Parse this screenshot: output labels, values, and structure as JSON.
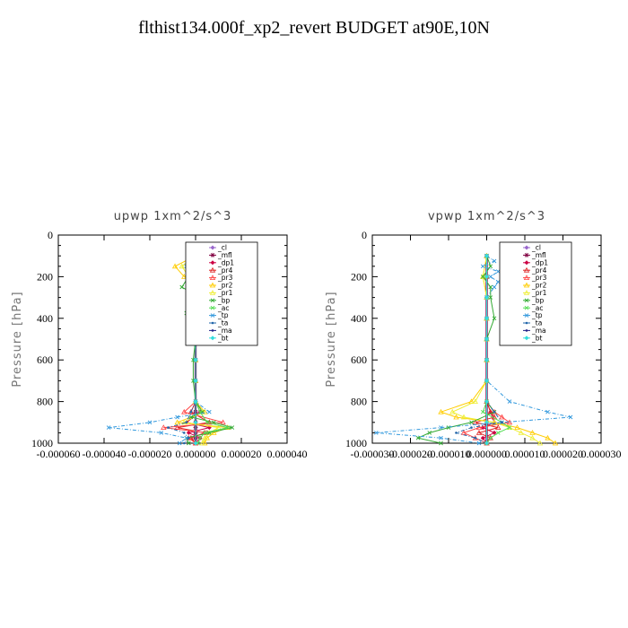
{
  "title": "flthist134.000f_xp2_revert  BUDGET at90E,10N",
  "colors": {
    "_cl": "#9966cc",
    "_mfl": "#800040",
    "_dp1": "#cc0044",
    "_pr4": "#dd2222",
    "_pr3": "#ff4444",
    "_pr2": "#ffcc00",
    "_pr1": "#eeee33",
    "_bp": "#33aa33",
    "_ac": "#55dd55",
    "_tp": "#3399dd",
    "_ta": "#2266aa",
    "_ma": "#222288",
    "_bt": "#33dddd"
  },
  "chart_data": [
    {
      "type": "line",
      "title": "upwp   1xm^2/s^3",
      "ylabel": "Pressure [hPa]",
      "xlim": [
        -6e-05,
        4e-05
      ],
      "ylim": [
        1000,
        0
      ],
      "xticks": [
        "-0.000060",
        "-0.000040",
        "-0.000020",
        "0.000000",
        "0.000020",
        "0.000040"
      ],
      "yticks": [
        "0",
        "200",
        "400",
        "600",
        "800",
        "1000"
      ],
      "legend_position": "top-right",
      "series": [
        {
          "name": "_cl",
          "color": "#9966cc",
          "y": [
            100,
            200,
            300,
            400,
            500,
            600,
            700,
            800,
            850,
            900,
            925,
            950,
            975,
            1000
          ],
          "values": [
            0,
            0,
            0,
            0,
            0,
            0,
            0,
            0,
            0,
            0,
            0,
            0,
            0,
            0
          ]
        },
        {
          "name": "_mfl",
          "color": "#800040",
          "y": [
            100,
            200,
            300,
            400,
            500,
            600,
            700,
            800,
            850,
            900,
            925,
            950,
            975,
            1000
          ],
          "values": [
            0,
            0,
            0,
            0,
            0,
            0,
            0,
            0,
            0,
            0,
            0,
            0,
            0,
            0
          ]
        },
        {
          "name": "_dp1",
          "color": "#cc0044",
          "y": [
            100,
            200,
            300,
            400,
            500,
            600,
            700,
            800,
            850,
            900,
            925,
            950,
            975,
            1000
          ],
          "values": [
            0,
            1e-06,
            0,
            0,
            0,
            0,
            0,
            0,
            2e-06,
            -4e-06,
            6e-06,
            -3e-06,
            2e-06,
            0
          ]
        },
        {
          "name": "_pr4",
          "color": "#dd2222",
          "y": [
            100,
            200,
            300,
            400,
            500,
            600,
            700,
            800,
            850,
            900,
            925,
            950,
            975,
            1000
          ],
          "values": [
            0,
            1e-06,
            0,
            0,
            0,
            0,
            0,
            0,
            -2e-06,
            6e-06,
            -8e-06,
            4e-06,
            -2e-06,
            0
          ]
        },
        {
          "name": "_pr3",
          "color": "#ff4444",
          "y": [
            100,
            150,
            200,
            300,
            400,
            500,
            600,
            700,
            800,
            850,
            900,
            925,
            950,
            975,
            1000
          ],
          "values": [
            0,
            -2e-06,
            3e-06,
            0,
            0,
            0,
            0,
            0,
            0,
            -5e-06,
            1.2e-05,
            -1.4e-05,
            5e-06,
            -3e-06,
            0
          ]
        },
        {
          "name": "_pr2",
          "color": "#ffcc00",
          "y": [
            100,
            150,
            200,
            250,
            300,
            400,
            500,
            600,
            700,
            800,
            850,
            900,
            925,
            950,
            975,
            1000
          ],
          "values": [
            0,
            -9e-06,
            -5e-06,
            2e-06,
            0,
            0,
            0,
            0,
            0,
            0,
            4e-06,
            -8e-06,
            1.4e-05,
            8e-06,
            5e-06,
            4e-06
          ]
        },
        {
          "name": "_pr1",
          "color": "#eeee33",
          "y": [
            100,
            150,
            200,
            250,
            300,
            400,
            500,
            600,
            700,
            800,
            850,
            900,
            925,
            950,
            975,
            1000
          ],
          "values": [
            0,
            -6e-06,
            -3e-06,
            1e-06,
            0,
            0,
            0,
            0,
            0,
            0,
            3e-06,
            -5e-06,
            1e-05,
            6e-06,
            4e-06,
            3e-06
          ]
        },
        {
          "name": "_bp",
          "color": "#33aa33",
          "y": [
            100,
            150,
            200,
            250,
            300,
            350,
            375,
            400,
            500,
            600,
            700,
            800,
            850,
            875,
            900,
            925,
            950,
            975,
            1000
          ],
          "values": [
            0,
            4e-06,
            -3e-06,
            -6e-06,
            2e-06,
            -3e-06,
            -4e-06,
            1e-06,
            0,
            -1e-06,
            -1e-06,
            0,
            3e-06,
            -2e-06,
            8e-06,
            1.6e-05,
            6e-06,
            -4e-06,
            -3e-06
          ]
        },
        {
          "name": "_ac",
          "color": "#55dd55",
          "y": [
            100,
            200,
            300,
            400,
            500,
            600,
            700,
            800,
            850,
            900,
            925,
            950,
            975,
            1000
          ],
          "values": [
            0,
            1e-06,
            0,
            0,
            0,
            0,
            0,
            0,
            2e-06,
            5e-06,
            1.4e-05,
            4e-06,
            2e-06,
            1e-06
          ]
        },
        {
          "name": "_tp",
          "color": "#3399dd",
          "y": [
            100,
            125,
            150,
            175,
            200,
            250,
            300,
            400,
            500,
            600,
            700,
            800,
            850,
            875,
            900,
            925,
            950,
            975,
            1000
          ],
          "values": [
            0,
            6e-06,
            -4e-06,
            2e-06,
            4e-06,
            1e-06,
            -1e-06,
            0,
            0,
            0,
            0,
            0,
            6e-06,
            -8e-06,
            -2e-05,
            -3.8e-05,
            -1.5e-05,
            -4e-06,
            -7e-06
          ]
        },
        {
          "name": "_ta",
          "color": "#2266aa",
          "y": [
            100,
            200,
            300,
            400,
            500,
            600,
            700,
            800,
            850,
            900,
            925,
            950,
            975,
            1000
          ],
          "values": [
            0,
            0,
            0,
            0,
            0,
            0,
            0,
            0,
            -2e-06,
            -4e-06,
            -1.2e-05,
            -5e-06,
            -3e-06,
            -5e-06
          ]
        },
        {
          "name": "_ma",
          "color": "#222288",
          "y": [
            100,
            200,
            300,
            400,
            500,
            600,
            700,
            800,
            900,
            1000
          ],
          "values": [
            0,
            0,
            0,
            0,
            0,
            0,
            0,
            0,
            0,
            0
          ]
        },
        {
          "name": "_bt",
          "color": "#33dddd",
          "y": [
            100,
            200,
            300,
            400,
            500,
            600,
            700,
            800,
            900,
            1000
          ],
          "values": [
            0,
            0,
            0,
            0,
            0,
            0,
            0,
            0,
            0,
            0
          ]
        }
      ]
    },
    {
      "type": "line",
      "title": "vpwp   1xm^2/s^3",
      "ylabel": "Pressure [hPa]",
      "xlim": [
        -3e-05,
        3e-05
      ],
      "ylim": [
        1000,
        0
      ],
      "xticks": [
        "-0.000030",
        "-0.000020",
        "-0.000010",
        "0.000000",
        "0.000010",
        "0.000020",
        "0.000030"
      ],
      "yticks": [
        "0",
        "200",
        "400",
        "600",
        "800",
        "1000"
      ],
      "legend_position": "top-right",
      "series": [
        {
          "name": "_cl",
          "color": "#9966cc",
          "y": [
            100,
            200,
            300,
            400,
            500,
            600,
            700,
            800,
            900,
            1000
          ],
          "values": [
            0,
            0,
            0,
            0,
            0,
            0,
            0,
            0,
            0,
            0
          ]
        },
        {
          "name": "_mfl",
          "color": "#800040",
          "y": [
            100,
            200,
            300,
            400,
            500,
            600,
            700,
            800,
            900,
            1000
          ],
          "values": [
            0,
            0,
            0,
            0,
            0,
            0,
            0,
            0,
            0,
            0
          ]
        },
        {
          "name": "_dp1",
          "color": "#cc0044",
          "y": [
            100,
            200,
            300,
            400,
            500,
            600,
            700,
            800,
            850,
            900,
            925,
            950,
            975,
            1000
          ],
          "values": [
            0,
            0,
            0,
            0,
            0,
            0,
            0,
            0,
            1e-06,
            2e-06,
            -1e-06,
            2e-06,
            -1e-06,
            0
          ]
        },
        {
          "name": "_pr4",
          "color": "#dd2222",
          "y": [
            100,
            200,
            300,
            400,
            500,
            600,
            700,
            800,
            850,
            875,
            900,
            925,
            950,
            975,
            1000
          ],
          "values": [
            0,
            0,
            0,
            0,
            0,
            0,
            0,
            0,
            1e-06,
            2e-06,
            -3e-06,
            3e-06,
            -2e-06,
            1e-06,
            0
          ]
        },
        {
          "name": "_pr3",
          "color": "#ff4444",
          "y": [
            100,
            200,
            300,
            400,
            500,
            600,
            700,
            800,
            850,
            875,
            900,
            925,
            950,
            975,
            1000
          ],
          "values": [
            0,
            0,
            0,
            0,
            0,
            0,
            0,
            0,
            2e-06,
            4e-06,
            6e-06,
            -2e-06,
            -6e-06,
            -3e-06,
            0
          ]
        },
        {
          "name": "_pr2",
          "color": "#ffcc00",
          "y": [
            100,
            200,
            300,
            400,
            500,
            600,
            700,
            800,
            850,
            875,
            900,
            925,
            950,
            975,
            1000
          ],
          "values": [
            0,
            -1e-06,
            0,
            0,
            0,
            0,
            0,
            -4e-06,
            -1.2e-05,
            -8e-06,
            2e-06,
            8e-06,
            1.2e-05,
            1.6e-05,
            1.8e-05
          ]
        },
        {
          "name": "_pr1",
          "color": "#eeee33",
          "y": [
            100,
            200,
            300,
            400,
            500,
            600,
            700,
            800,
            850,
            875,
            900,
            925,
            950,
            975,
            1000
          ],
          "values": [
            0,
            -1e-06,
            0,
            0,
            0,
            0,
            0,
            -3e-06,
            -9e-06,
            -6e-06,
            2e-06,
            6e-06,
            9e-06,
            1.2e-05,
            1.4e-05
          ]
        },
        {
          "name": "_bp",
          "color": "#33aa33",
          "y": [
            100,
            150,
            200,
            250,
            300,
            400,
            500,
            600,
            700,
            800,
            850,
            900,
            925,
            950,
            975,
            1000
          ],
          "values": [
            0,
            1e-06,
            -1e-06,
            1e-06,
            1e-06,
            2e-06,
            0,
            0,
            0,
            0,
            2e-06,
            -4e-06,
            -1e-05,
            -1.5e-05,
            -1.8e-05,
            -1.2e-05
          ]
        },
        {
          "name": "_ac",
          "color": "#55dd55",
          "y": [
            100,
            200,
            300,
            400,
            500,
            600,
            700,
            800,
            850,
            900,
            925,
            950,
            975,
            1000
          ],
          "values": [
            0,
            0,
            0,
            0,
            0,
            0,
            0,
            0,
            -1e-06,
            4e-06,
            6e-06,
            3e-06,
            1e-06,
            0
          ]
        },
        {
          "name": "_tp",
          "color": "#3399dd",
          "y": [
            100,
            125,
            150,
            175,
            200,
            225,
            250,
            300,
            400,
            500,
            600,
            700,
            800,
            850,
            875,
            900,
            925,
            950,
            975,
            1000
          ],
          "values": [
            0,
            2e-06,
            -1e-06,
            3e-06,
            1e-06,
            3e-06,
            2e-06,
            0,
            0,
            0,
            0,
            0,
            6e-06,
            1.6e-05,
            2.2e-05,
            4e-06,
            -1.2e-05,
            -2.9e-05,
            -1.2e-05,
            -2e-06
          ]
        },
        {
          "name": "_ta",
          "color": "#2266aa",
          "y": [
            100,
            200,
            300,
            400,
            500,
            600,
            700,
            800,
            850,
            900,
            925,
            950,
            975,
            1000
          ],
          "values": [
            0,
            0,
            0,
            0,
            0,
            0,
            0,
            0,
            2e-06,
            4e-06,
            -4e-06,
            -8e-06,
            -3e-06,
            0
          ]
        },
        {
          "name": "_ma",
          "color": "#222288",
          "y": [
            100,
            200,
            300,
            400,
            500,
            600,
            700,
            800,
            900,
            1000
          ],
          "values": [
            0,
            0,
            0,
            0,
            0,
            0,
            0,
            0,
            0,
            0
          ]
        },
        {
          "name": "_bt",
          "color": "#33dddd",
          "y": [
            100,
            200,
            300,
            400,
            500,
            600,
            700,
            800,
            900,
            1000
          ],
          "values": [
            0,
            0,
            0,
            0,
            0,
            0,
            0,
            0,
            0,
            0
          ]
        }
      ]
    }
  ]
}
